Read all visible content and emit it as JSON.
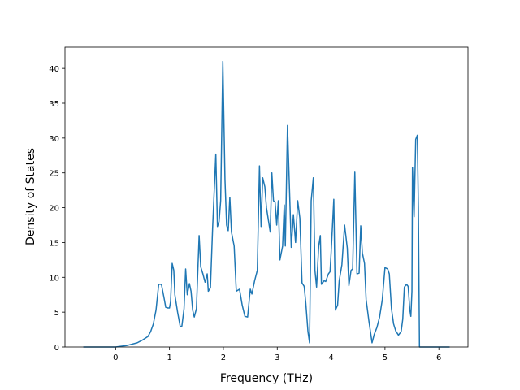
{
  "chart_data": {
    "type": "line",
    "xlabel": "Frequency (THz)",
    "ylabel": "Density of States",
    "x": [
      -0.6,
      0.0,
      0.2,
      0.4,
      0.5,
      0.6,
      0.65,
      0.7,
      0.75,
      0.8,
      0.85,
      0.9,
      0.93,
      0.97,
      1.0,
      1.02,
      1.05,
      1.08,
      1.1,
      1.15,
      1.2,
      1.23,
      1.27,
      1.3,
      1.33,
      1.37,
      1.4,
      1.43,
      1.46,
      1.5,
      1.55,
      1.58,
      1.62,
      1.66,
      1.7,
      1.72,
      1.76,
      1.8,
      1.86,
      1.89,
      1.92,
      1.95,
      1.99,
      2.03,
      2.06,
      2.09,
      2.12,
      2.15,
      2.2,
      2.24,
      2.3,
      2.35,
      2.4,
      2.45,
      2.5,
      2.53,
      2.58,
      2.63,
      2.67,
      2.7,
      2.73,
      2.77,
      2.8,
      2.84,
      2.87,
      2.9,
      2.93,
      2.96,
      2.99,
      3.02,
      3.05,
      3.1,
      3.13,
      3.15,
      3.19,
      3.23,
      3.26,
      3.3,
      3.34,
      3.38,
      3.42,
      3.46,
      3.5,
      3.53,
      3.57,
      3.6,
      3.63,
      3.67,
      3.7,
      3.73,
      3.77,
      3.8,
      3.82,
      3.87,
      3.9,
      3.95,
      3.98,
      4.0,
      4.05,
      4.08,
      4.12,
      4.15,
      4.2,
      4.25,
      4.3,
      4.33,
      4.37,
      4.4,
      4.44,
      4.48,
      4.52,
      4.55,
      4.58,
      4.62,
      4.65,
      4.7,
      4.73,
      4.76,
      4.8,
      4.85,
      4.9,
      4.95,
      5.0,
      5.05,
      5.08,
      5.12,
      5.16,
      5.2,
      5.25,
      5.3,
      5.33,
      5.36,
      5.4,
      5.43,
      5.46,
      5.48,
      5.5,
      5.51,
      5.54,
      5.57,
      5.6,
      5.62,
      5.64,
      6.2
    ],
    "series": [
      {
        "color": "#1f77b4",
        "values": [
          0,
          0,
          0.2,
          0.6,
          1.0,
          1.5,
          2.2,
          3.3,
          5.3,
          9.0,
          9.0,
          7.0,
          5.7,
          5.6,
          5.6,
          6.5,
          12.0,
          11.0,
          7.5,
          5.0,
          2.9,
          3.0,
          5.5,
          11.2,
          7.5,
          9.1,
          8.0,
          5.3,
          4.3,
          5.5,
          16.0,
          11.5,
          10.5,
          9.3,
          10.5,
          8.0,
          8.5,
          17.0,
          27.7,
          17.3,
          18.0,
          21.0,
          41.0,
          24.0,
          17.5,
          16.7,
          21.5,
          16.5,
          14.5,
          8.0,
          8.3,
          6.0,
          4.4,
          4.3,
          8.3,
          7.6,
          9.5,
          11.0,
          26.0,
          17.3,
          24.3,
          23.0,
          20.0,
          18.0,
          16.5,
          25.0,
          21.0,
          20.8,
          17.5,
          21.0,
          12.5,
          14.5,
          20.4,
          14.5,
          31.8,
          22.0,
          14.3,
          19.0,
          15.0,
          21.0,
          18.5,
          9.2,
          8.7,
          6.3,
          2.2,
          0.6,
          21.0,
          24.3,
          11.0,
          8.6,
          14.5,
          16.0,
          9.0,
          9.5,
          9.4,
          10.5,
          10.8,
          13.5,
          21.2,
          5.3,
          6.0,
          9.5,
          11.8,
          17.5,
          14.2,
          8.8,
          11.0,
          11.2,
          25.1,
          10.5,
          10.6,
          17.4,
          13.5,
          12.0,
          6.8,
          3.8,
          2.2,
          0.6,
          1.8,
          2.8,
          4.3,
          6.8,
          11.4,
          11.2,
          10.5,
          5.5,
          3.3,
          2.3,
          1.7,
          2.2,
          4.0,
          8.6,
          9.0,
          8.7,
          5.4,
          4.4,
          8.0,
          25.8,
          18.7,
          29.8,
          30.4,
          20.0,
          0,
          0
        ]
      }
    ],
    "xlim": [
      -0.94,
      6.54
    ],
    "ylim": [
      0,
      43.05
    ],
    "xticks": [
      0,
      1,
      2,
      3,
      4,
      5,
      6
    ],
    "yticks": [
      0,
      5,
      10,
      15,
      20,
      25,
      30,
      35,
      40
    ]
  }
}
